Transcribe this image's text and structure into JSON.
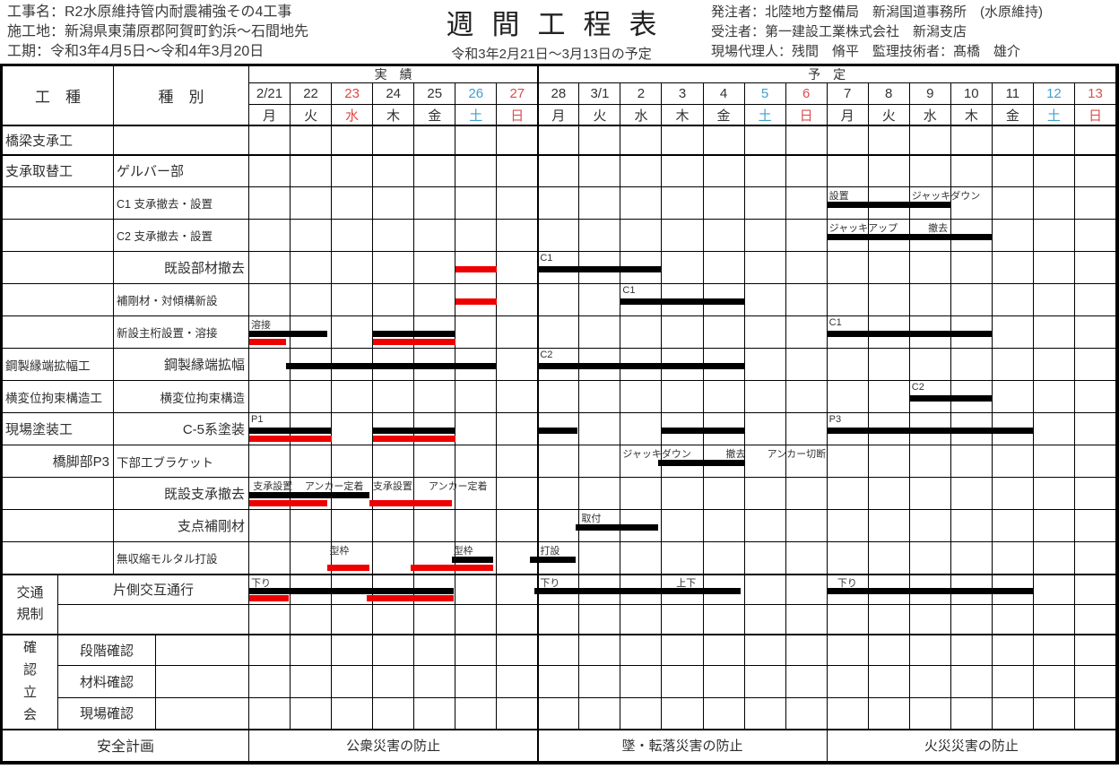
{
  "header": {
    "project": "工事名：R2水原維持管内耐震補強その4工事",
    "site": "施工地：新潟県東蒲原郡阿賀町釣浜～石間地先",
    "term": "工期：令和3年4月5日～令和4年3月20日",
    "title": "週間工程表",
    "subtitle": "令和3年2月21日～3月13日の予定",
    "client": "発注者：北陸地方整備局　新潟国道事務所　(水原維持)",
    "contractor": "受注者：第一建設工業株式会社　新潟支店",
    "staff": "現場代理人：残間　脩平　監理技術者：髙橋　雄介"
  },
  "colors": {
    "weekday": "#333333",
    "saturday": "#3fa0d0",
    "sunday": "#d94f4f",
    "holiday": "#e04545",
    "bar_black": "#000000",
    "bar_red": "#ee0000"
  },
  "chart_data": {
    "type": "table",
    "subtype": "gantt-weekly-schedule",
    "title": "週間工程表",
    "period": "令和3年2月21日～3月13日の予定",
    "col_headers": {
      "category": "工　種",
      "item": "種　別"
    },
    "groups": [
      {
        "label": "実　績",
        "from": 0,
        "to": 7
      },
      {
        "label": "予　定",
        "from": 7,
        "to": 21
      }
    ],
    "dates": [
      {
        "d": "2/21",
        "w": "月",
        "t": "weekday"
      },
      {
        "d": "22",
        "w": "火",
        "t": "weekday"
      },
      {
        "d": "23",
        "w": "水",
        "t": "holiday"
      },
      {
        "d": "24",
        "w": "木",
        "t": "weekday"
      },
      {
        "d": "25",
        "w": "金",
        "t": "weekday"
      },
      {
        "d": "26",
        "w": "土",
        "t": "saturday"
      },
      {
        "d": "27",
        "w": "日",
        "t": "sunday"
      },
      {
        "d": "28",
        "w": "月",
        "t": "weekday"
      },
      {
        "d": "3/1",
        "w": "火",
        "t": "weekday"
      },
      {
        "d": "2",
        "w": "水",
        "t": "weekday"
      },
      {
        "d": "3",
        "w": "木",
        "t": "weekday"
      },
      {
        "d": "4",
        "w": "金",
        "t": "weekday"
      },
      {
        "d": "5",
        "w": "土",
        "t": "saturday"
      },
      {
        "d": "6",
        "w": "日",
        "t": "sunday"
      },
      {
        "d": "7",
        "w": "月",
        "t": "weekday"
      },
      {
        "d": "8",
        "w": "火",
        "t": "weekday"
      },
      {
        "d": "9",
        "w": "水",
        "t": "weekday"
      },
      {
        "d": "10",
        "w": "木",
        "t": "weekday"
      },
      {
        "d": "11",
        "w": "金",
        "t": "weekday"
      },
      {
        "d": "12",
        "w": "土",
        "t": "saturday"
      },
      {
        "d": "13",
        "w": "日",
        "t": "sunday"
      }
    ],
    "rows": [
      {
        "category": "橋梁支承工",
        "item": "",
        "item_align": "left",
        "notes": [],
        "bars": []
      },
      {
        "category": "支承取替工",
        "item": "ゲルバー部",
        "item_align": "left",
        "notes": [],
        "bars": []
      },
      {
        "category": "",
        "item": "C1 支承撤去・設置",
        "item_align": "left",
        "notes": [
          {
            "t": "設置",
            "x": 14
          },
          {
            "t": "ジャッキダウン",
            "x": 16
          }
        ],
        "bars": [
          {
            "c": "black",
            "f": 14,
            "e": 17
          }
        ]
      },
      {
        "category": "",
        "item": "C2 支承撤去・設置",
        "item_align": "left",
        "notes": [
          {
            "t": "ジャッキアップ",
            "x": 14
          },
          {
            "t": "撤去",
            "x": 16.4
          }
        ],
        "bars": [
          {
            "c": "black",
            "f": 14,
            "e": 18
          }
        ]
      },
      {
        "category": "",
        "item": "既設部材撤去",
        "item_align": "right",
        "notes": [
          {
            "t": "C1",
            "x": 7
          }
        ],
        "bars": [
          {
            "c": "red",
            "f": 5,
            "e": 6,
            "lvl": 0
          },
          {
            "c": "black",
            "f": 7,
            "e": 10
          }
        ]
      },
      {
        "category": "",
        "item": "補剛材・対傾構新設",
        "item_align": "left",
        "notes": [
          {
            "t": "C1",
            "x": 9
          }
        ],
        "bars": [
          {
            "c": "red",
            "f": 5,
            "e": 6,
            "lvl": 0
          },
          {
            "c": "black",
            "f": 9,
            "e": 12
          }
        ]
      },
      {
        "category": "",
        "item": "新設主桁設置・溶接",
        "item_align": "left",
        "notes": [
          {
            "t": "溶接",
            "x": 0
          },
          {
            "t": "C1",
            "x": 14
          }
        ],
        "bars": [
          {
            "c": "black",
            "f": 0,
            "e": 1.9
          },
          {
            "c": "red",
            "f": 0,
            "e": 0.9
          },
          {
            "c": "black",
            "f": 3,
            "e": 5
          },
          {
            "c": "red",
            "f": 3,
            "e": 5
          },
          {
            "c": "black",
            "f": 14,
            "e": 18
          }
        ]
      },
      {
        "category": "鋼製縁端拡幅工",
        "item": "鋼製縁端拡幅",
        "item_align": "right",
        "notes": [
          {
            "t": "C2",
            "x": 7
          }
        ],
        "bars": [
          {
            "c": "black",
            "f": 0.9,
            "e": 6
          },
          {
            "c": "black",
            "f": 7,
            "e": 12
          }
        ]
      },
      {
        "category": "横変位拘束構造工",
        "item": "横変位拘束構造",
        "item_align": "right",
        "notes": [
          {
            "t": "C2",
            "x": 16
          }
        ],
        "bars": [
          {
            "c": "black",
            "f": 16,
            "e": 18
          }
        ]
      },
      {
        "category": "現場塗装工",
        "item": "C-5系塗装",
        "item_align": "right",
        "notes": [
          {
            "t": "P1",
            "x": 0
          },
          {
            "t": "P3",
            "x": 14
          }
        ],
        "bars": [
          {
            "c": "black",
            "f": 0,
            "e": 2
          },
          {
            "c": "red",
            "f": 0,
            "e": 2
          },
          {
            "c": "black",
            "f": 3,
            "e": 5
          },
          {
            "c": "red",
            "f": 3,
            "e": 5
          },
          {
            "c": "black",
            "f": 7,
            "e": 7.95
          },
          {
            "c": "black",
            "f": 10,
            "e": 12
          },
          {
            "c": "black",
            "f": 14,
            "e": 19
          }
        ]
      },
      {
        "category": "橋脚部P3",
        "category_align": "right",
        "item": "下部工ブラケット",
        "item_align": "left",
        "notes": [
          {
            "t": "ジャッキダウン",
            "x": 9
          },
          {
            "t": "撤去",
            "x": 11.5
          },
          {
            "t": "アンカー切断",
            "x": 12.5
          }
        ],
        "bars": [
          {
            "c": "black",
            "f": 9.9,
            "e": 12
          }
        ]
      },
      {
        "category": "",
        "item": "既設支承撤去",
        "item_align": "right",
        "notes": [
          {
            "t": "支承設置",
            "x": 0.05
          },
          {
            "t": "アンカー定着",
            "x": 1.3
          },
          {
            "t": "支承設置",
            "x": 2.95
          },
          {
            "t": "アンカー定着",
            "x": 4.3
          }
        ],
        "bars": [
          {
            "c": "black",
            "f": 0,
            "e": 2.9
          },
          {
            "c": "red",
            "f": 0,
            "e": 1.9
          },
          {
            "c": "red",
            "f": 2.9,
            "e": 4.9
          }
        ]
      },
      {
        "category": "",
        "item": "支点補剛材",
        "item_align": "right",
        "notes": [
          {
            "t": "取付",
            "x": 8
          }
        ],
        "bars": [
          {
            "c": "black",
            "f": 7.9,
            "e": 9.9
          }
        ]
      },
      {
        "category": "",
        "item": "無収縮モルタル打設",
        "item_align": "left",
        "notes": [
          {
            "t": "型枠",
            "x": 1.9
          },
          {
            "t": "型枠",
            "x": 4.9
          },
          {
            "t": "打設",
            "x": 7
          }
        ],
        "bars": [
          {
            "c": "red",
            "f": 1.9,
            "e": 2.9
          },
          {
            "c": "red",
            "f": 3.9,
            "e": 5.9
          },
          {
            "c": "black",
            "f": 4.9,
            "e": 5.9
          },
          {
            "c": "black",
            "f": 6.8,
            "e": 7.9
          }
        ]
      }
    ],
    "traffic": {
      "group": "交通規制",
      "item": "片側交互通行",
      "notes": [
        {
          "t": "下り",
          "x": 0
        },
        {
          "t": "下り",
          "x": 7
        },
        {
          "t": "上下",
          "x": 10.3
        },
        {
          "t": "下り",
          "x": 14.2
        }
      ],
      "bars": [
        {
          "c": "black",
          "f": 0,
          "e": 4.95
        },
        {
          "c": "red",
          "f": 0,
          "e": 0.95
        },
        {
          "c": "red",
          "f": 2.85,
          "e": 4.95
        },
        {
          "c": "black",
          "f": 6.9,
          "e": 11.9
        },
        {
          "c": "black",
          "f": 14,
          "e": 19
        }
      ]
    },
    "inspection": {
      "group": "確認立会",
      "rows": [
        "段階確認",
        "材料確認",
        "現場確認"
      ]
    },
    "safety": {
      "label": "安全計画",
      "cells": [
        "公衆災害の防止",
        "墜・転落災害の防止",
        "火災災害の防止"
      ]
    }
  }
}
